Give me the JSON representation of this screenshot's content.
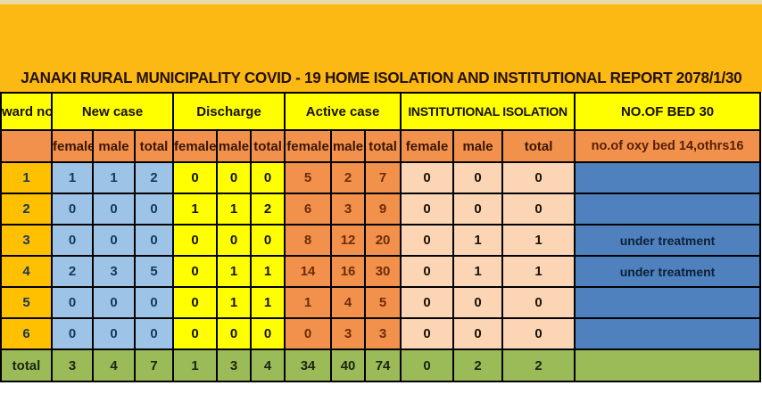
{
  "title": "JANAKI RURAL MUNICIPALITY COVID - 19 HOME ISOLATION AND INSTITUTIONAL REPORT 2078/1/30",
  "header": {
    "ward_label": "ward no.",
    "groups": [
      {
        "label": "New case"
      },
      {
        "label": "Discharge"
      },
      {
        "label": "Active case"
      },
      {
        "label": "INSTITUTIONAL ISOLATION"
      },
      {
        "label": "NO.OF BED 30"
      }
    ],
    "sub_labels": [
      "female",
      "male",
      "total"
    ],
    "bed_sub_label": "no.of oxy bed 14,othrs16"
  },
  "rows": [
    {
      "ward": "1",
      "new_case": [
        "1",
        "1",
        "2"
      ],
      "discharge": [
        "0",
        "0",
        "0"
      ],
      "active_case": [
        "5",
        "2",
        "7"
      ],
      "institutional": [
        "0",
        "0",
        "0"
      ],
      "bed_note": ""
    },
    {
      "ward": "2",
      "new_case": [
        "0",
        "0",
        "0"
      ],
      "discharge": [
        "1",
        "1",
        "2"
      ],
      "active_case": [
        "6",
        "3",
        "9"
      ],
      "institutional": [
        "0",
        "0",
        "0"
      ],
      "bed_note": ""
    },
    {
      "ward": "3",
      "new_case": [
        "0",
        "0",
        "0"
      ],
      "discharge": [
        "0",
        "0",
        "0"
      ],
      "active_case": [
        "8",
        "12",
        "20"
      ],
      "institutional": [
        "0",
        "1",
        "1"
      ],
      "bed_note": "under treatment"
    },
    {
      "ward": "4",
      "new_case": [
        "2",
        "3",
        "5"
      ],
      "discharge": [
        "0",
        "1",
        "1"
      ],
      "active_case": [
        "14",
        "16",
        "30"
      ],
      "institutional": [
        "0",
        "1",
        "1"
      ],
      "bed_note": "under treatment"
    },
    {
      "ward": "5",
      "new_case": [
        "0",
        "0",
        "0"
      ],
      "discharge": [
        "0",
        "1",
        "1"
      ],
      "active_case": [
        "1",
        "4",
        "5"
      ],
      "institutional": [
        "0",
        "0",
        "0"
      ],
      "bed_note": ""
    },
    {
      "ward": "6",
      "new_case": [
        "0",
        "0",
        "0"
      ],
      "discharge": [
        "0",
        "0",
        "0"
      ],
      "active_case": [
        "0",
        "3",
        "3"
      ],
      "institutional": [
        "0",
        "0",
        "0"
      ],
      "bed_note": ""
    }
  ],
  "total": {
    "label": "total",
    "new_case": [
      "3",
      "4",
      "7"
    ],
    "discharge": [
      "1",
      "3",
      "4"
    ],
    "active_case": [
      "34",
      "40",
      "74"
    ],
    "institutional": [
      "0",
      "2",
      "2"
    ],
    "bed_note": ""
  },
  "colors": {
    "title_band": "#fcb813",
    "header_yellow": "#ffff00",
    "subheader_orange": "#f2914b",
    "ward_gold": "#ffc000",
    "new_case_blue": "#9dc3e6",
    "discharge_yellow": "#ffff00",
    "active_case_orange": "#f2914b",
    "institutional_peach": "#fcd5b4",
    "bed_blue": "#4e81bd",
    "total_green": "#9bbb59"
  }
}
